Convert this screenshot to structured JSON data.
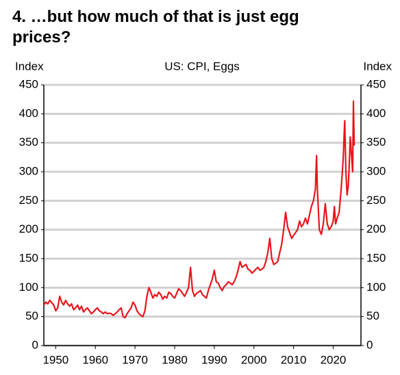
{
  "chart_data": {
    "type": "line",
    "title": "4. …but how much of that is just egg prices?",
    "subtitle": "US: CPI, Eggs",
    "y_label": "Index",
    "y2_label": "Index",
    "color": "#e8141b",
    "x": [
      1947,
      1947.5,
      1948,
      1948.5,
      1949,
      1949.5,
      1950,
      1950.5,
      1951,
      1951.5,
      1952,
      1952.5,
      1953,
      1953.5,
      1954,
      1954.5,
      1955,
      1955.5,
      1956,
      1956.5,
      1957,
      1957.5,
      1958,
      1958.5,
      1959,
      1959.5,
      1960,
      1960.5,
      1961,
      1961.5,
      1962,
      1962.5,
      1963,
      1963.5,
      1964,
      1964.5,
      1965,
      1965.5,
      1966,
      1966.5,
      1967,
      1967.5,
      1968,
      1968.5,
      1969,
      1969.5,
      1970,
      1970.5,
      1971,
      1971.5,
      1972,
      1972.5,
      1973,
      1973.5,
      1974,
      1974.5,
      1975,
      1975.5,
      1976,
      1976.5,
      1977,
      1977.5,
      1978,
      1978.5,
      1979,
      1979.5,
      1980,
      1980.5,
      1981,
      1981.5,
      1982,
      1982.5,
      1983,
      1983.5,
      1984,
      1984.5,
      1985,
      1985.5,
      1986,
      1986.5,
      1987,
      1987.5,
      1988,
      1988.5,
      1989,
      1989.5,
      1990,
      1990.5,
      1991,
      1991.5,
      1992,
      1992.5,
      1993,
      1993.5,
      1994,
      1994.5,
      1995,
      1995.5,
      1996,
      1996.5,
      1997,
      1997.5,
      1998,
      1998.5,
      1999,
      1999.5,
      2000,
      2000.5,
      2001,
      2001.5,
      2002,
      2002.5,
      2003,
      2003.5,
      2004,
      2004.5,
      2005,
      2005.5,
      2006,
      2006.5,
      2007,
      2007.5,
      2008,
      2008.5,
      2009,
      2009.5,
      2010,
      2010.5,
      2011,
      2011.5,
      2012,
      2012.5,
      2013,
      2013.5,
      2014,
      2014.5,
      2015,
      2015.5,
      2015.8,
      2016,
      2016.5,
      2017,
      2017.5,
      2018,
      2018.5,
      2019,
      2019.5,
      2020,
      2020.3,
      2020.6,
      2021,
      2021.5,
      2022,
      2022.5,
      2022.9,
      2023.2,
      2023.5,
      2023.8,
      2024,
      2024.3,
      2024.6,
      2024.9,
      2025.1,
      2025.3
    ],
    "values": [
      70,
      75,
      72,
      78,
      74,
      70,
      60,
      65,
      85,
      75,
      70,
      78,
      72,
      68,
      72,
      62,
      65,
      70,
      62,
      68,
      58,
      62,
      65,
      60,
      55,
      58,
      62,
      65,
      60,
      58,
      55,
      58,
      55,
      56,
      55,
      52,
      55,
      58,
      62,
      65,
      50,
      48,
      55,
      60,
      65,
      75,
      70,
      60,
      55,
      52,
      50,
      60,
      85,
      100,
      92,
      82,
      88,
      85,
      92,
      88,
      80,
      85,
      82,
      92,
      90,
      85,
      82,
      90,
      98,
      95,
      90,
      85,
      92,
      100,
      135,
      95,
      85,
      90,
      92,
      95,
      88,
      85,
      82,
      95,
      105,
      115,
      130,
      110,
      108,
      100,
      95,
      102,
      105,
      110,
      108,
      105,
      110,
      118,
      130,
      145,
      135,
      138,
      140,
      132,
      130,
      125,
      128,
      132,
      135,
      130,
      132,
      135,
      145,
      160,
      185,
      150,
      140,
      142,
      145,
      160,
      175,
      200,
      230,
      205,
      195,
      185,
      190,
      195,
      200,
      215,
      205,
      210,
      220,
      210,
      225,
      240,
      250,
      270,
      328,
      270,
      200,
      192,
      210,
      245,
      210,
      200,
      205,
      215,
      240,
      210,
      220,
      230,
      270,
      320,
      388,
      300,
      260,
      275,
      305,
      360,
      330,
      300,
      422,
      345
    ],
    "xlim": [
      1947,
      2027
    ],
    "xticks": [
      1950,
      1960,
      1970,
      1980,
      1990,
      2000,
      2010,
      2020
    ],
    "ylim": [
      0,
      450
    ],
    "yticks": [
      0,
      50,
      100,
      150,
      200,
      250,
      300,
      350,
      400,
      450
    ],
    "y2lim": [
      0,
      450
    ],
    "y2ticks": [
      0,
      50,
      100,
      150,
      200,
      250,
      300,
      350,
      400,
      450
    ],
    "grid": true
  }
}
